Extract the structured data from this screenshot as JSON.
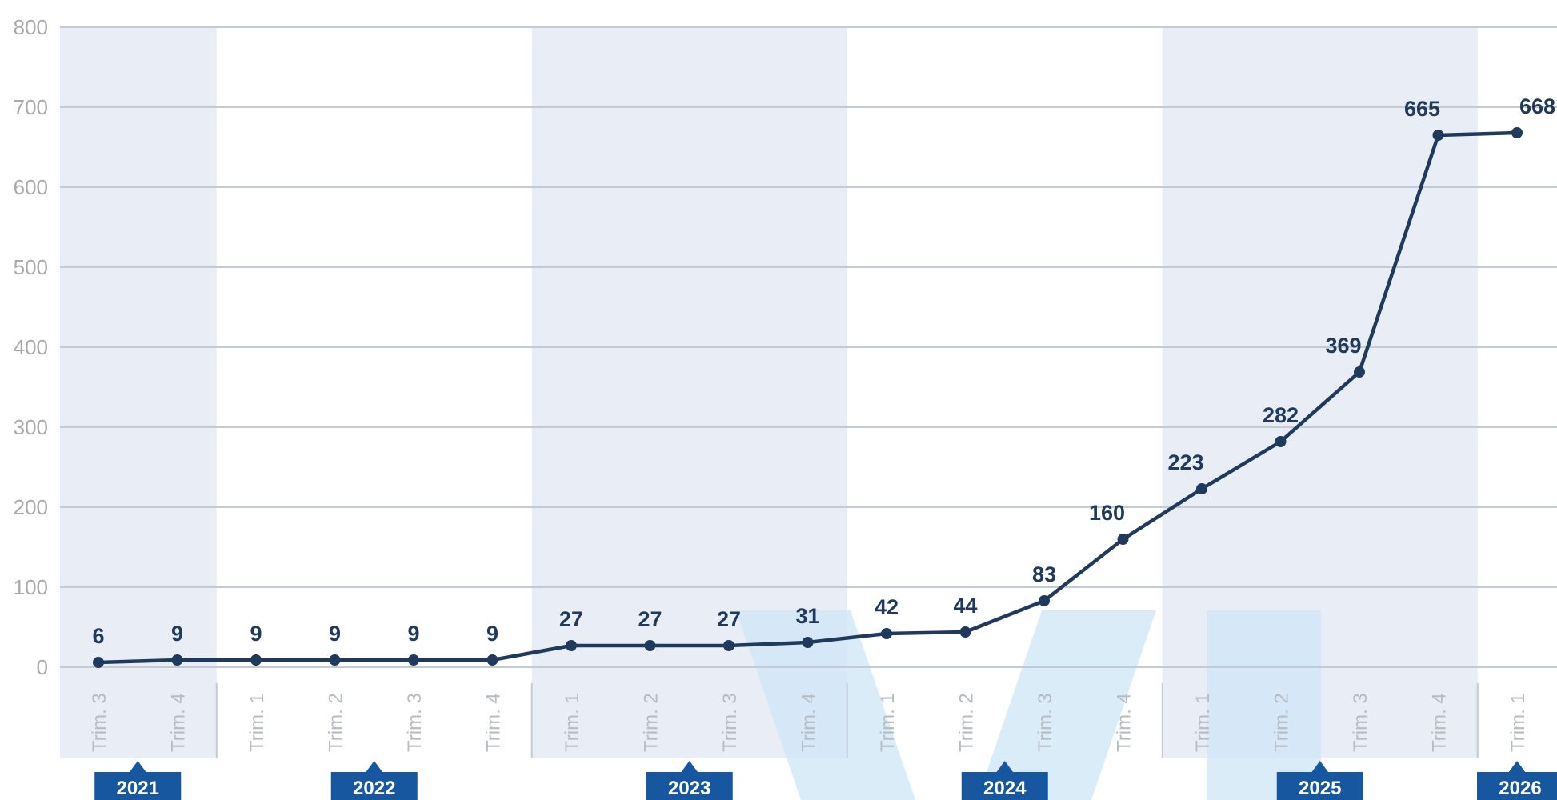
{
  "chart_data": {
    "type": "line",
    "title": "",
    "xlabel": "",
    "ylabel": "",
    "ylim": [
      0,
      800
    ],
    "yticks": [
      0,
      100,
      200,
      300,
      400,
      500,
      600,
      700,
      800
    ],
    "grid": true,
    "categories": [
      "Trim. 3",
      "Trim. 4",
      "Trim. 1",
      "Trim. 2",
      "Trim. 3",
      "Trim. 4",
      "Trim. 1",
      "Trim. 2",
      "Trim. 3",
      "Trim. 4",
      "Trim. 1",
      "Trim. 2",
      "Trim. 3",
      "Trim. 4",
      "Trim. 1",
      "Trim. 2",
      "Trim. 3",
      "Trim. 4",
      "Trim. 1"
    ],
    "series": [
      {
        "values": [
          6,
          9,
          9,
          9,
          9,
          9,
          27,
          27,
          27,
          31,
          42,
          44,
          83,
          160,
          223,
          282,
          369,
          665,
          668
        ]
      }
    ],
    "data_labels": [
      "6",
      "9",
      "9",
      "9",
      "9",
      "9",
      "27",
      "27",
      "27",
      "31",
      "42",
      "44",
      "83",
      "160",
      "223",
      "282",
      "369",
      "665",
      "668"
    ],
    "years": [
      {
        "label": "2021",
        "first": 0,
        "last": 1,
        "shaded": true
      },
      {
        "label": "2022",
        "first": 2,
        "last": 5,
        "shaded": false
      },
      {
        "label": "2023",
        "first": 6,
        "last": 9,
        "shaded": true
      },
      {
        "label": "2024",
        "first": 10,
        "last": 13,
        "shaded": false
      },
      {
        "label": "2025",
        "first": 14,
        "last": 17,
        "shaded": true
      },
      {
        "label": "2026",
        "first": 18,
        "last": 18,
        "shaded": false
      }
    ],
    "colors": {
      "line": "#1f3a5c",
      "band": "#e9eef6",
      "grid": "#c3cbd6",
      "year_badge": "#1757a0",
      "watermark": "#cfe6f7"
    }
  }
}
